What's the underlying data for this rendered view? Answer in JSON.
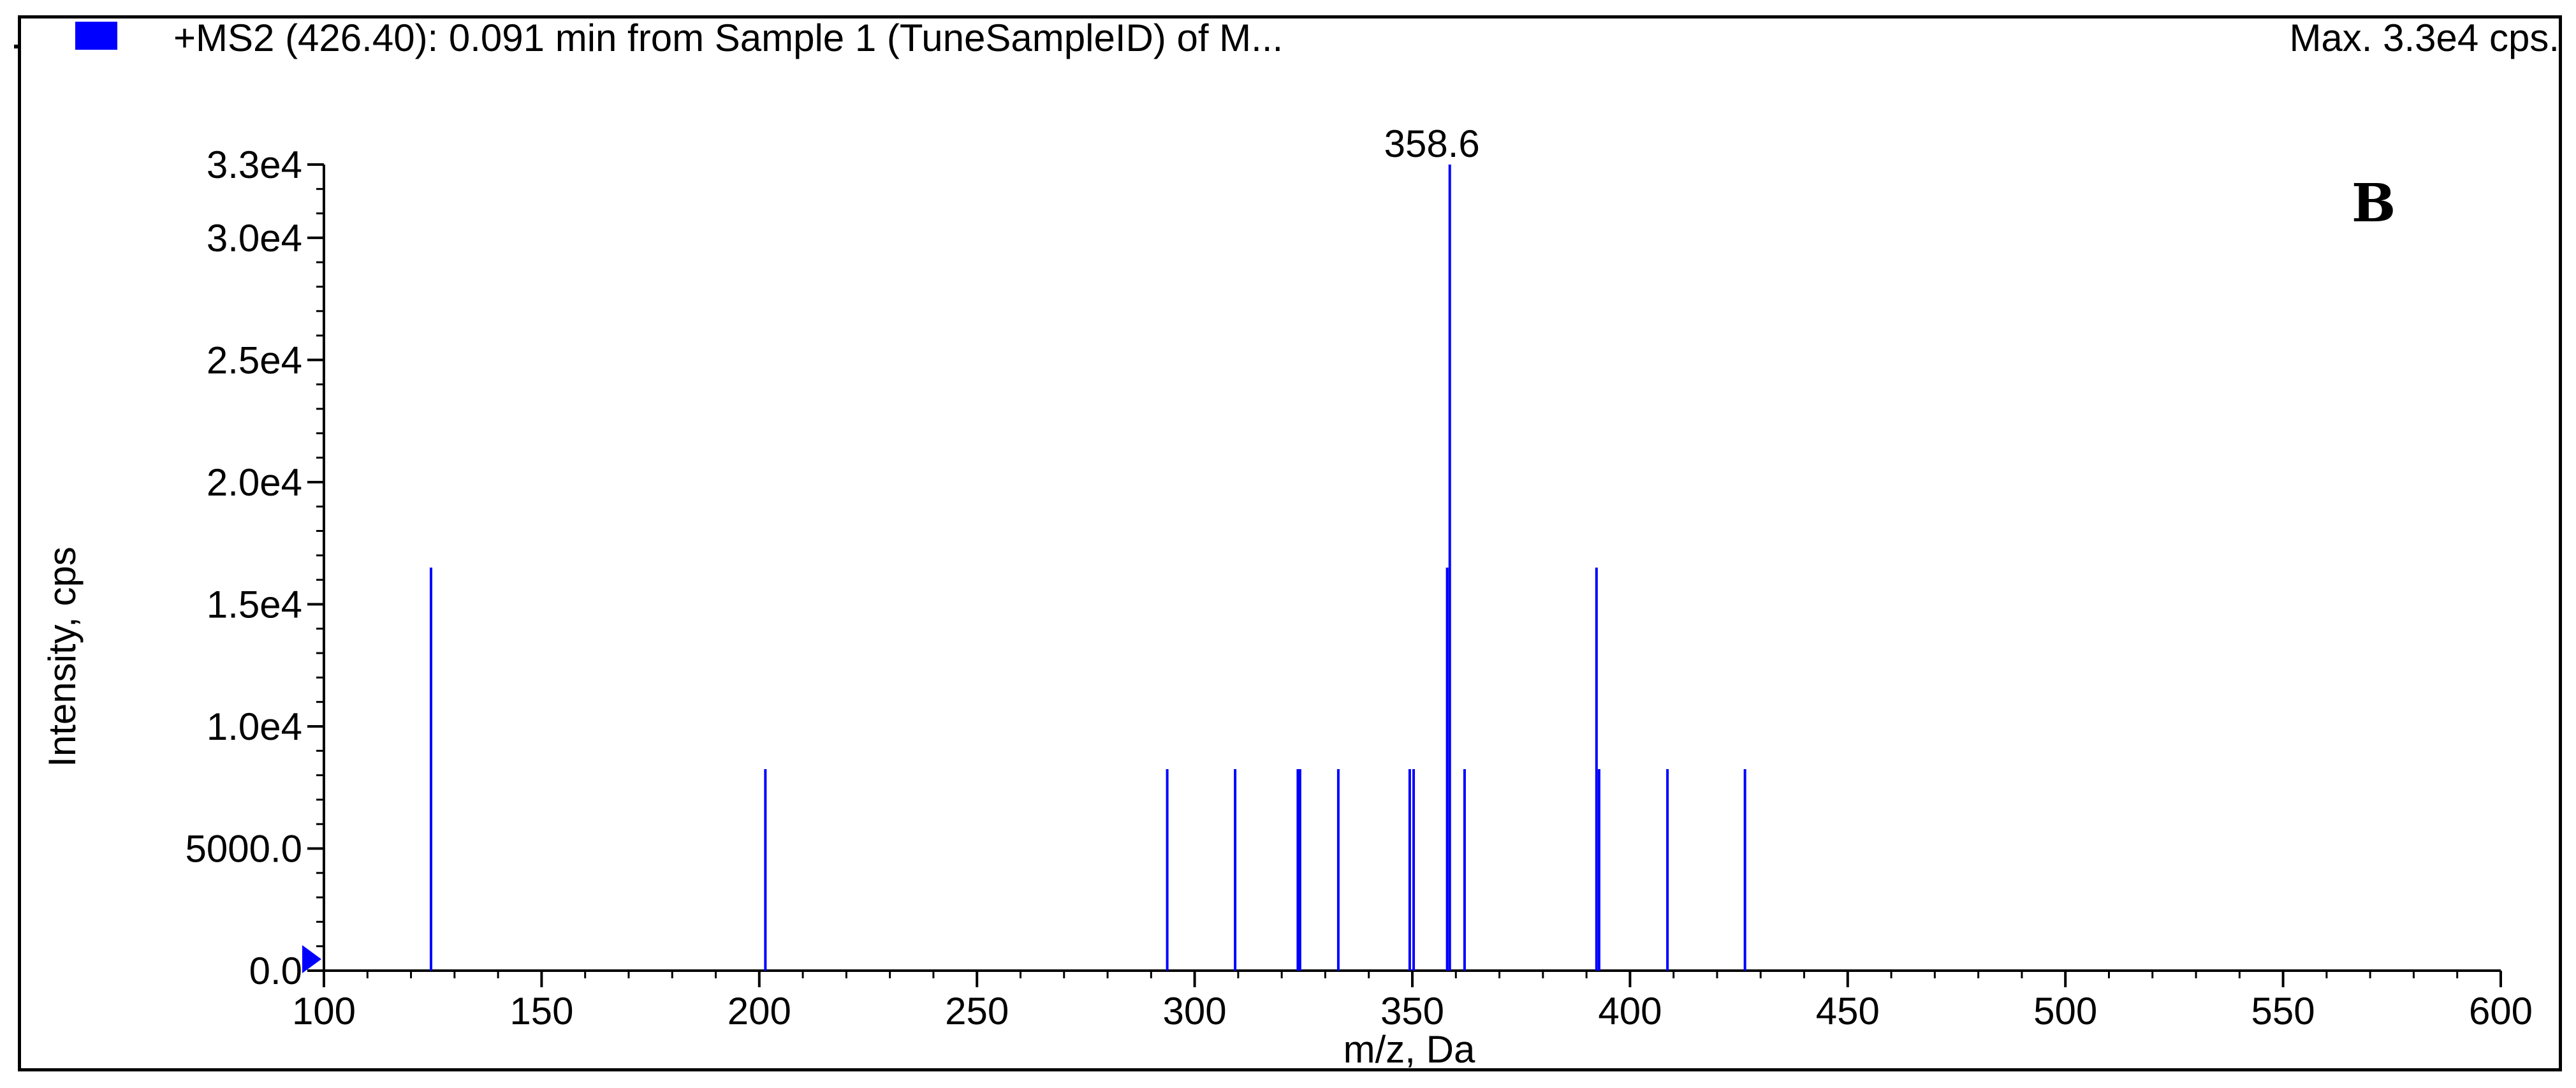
{
  "header": {
    "title": "+MS2 (426.40): 0.091 min from Sample 1 (TuneSampleID) of M...",
    "max_label": "Max. 3.3e4 cps.",
    "panel_letter": "B"
  },
  "colors": {
    "series": "#0000ff",
    "axis": "#000000",
    "background": "#ffffff"
  },
  "chart_data": {
    "type": "bar",
    "title": "+MS2 (426.40): 0.091 min from Sample 1 (TuneSampleID) of M...",
    "xlabel": "m/z, Da",
    "ylabel": "Intensity, cps",
    "xlim": [
      100,
      600
    ],
    "ylim": [
      0,
      33000
    ],
    "grid": false,
    "legend": "top-left",
    "x_ticks": [
      100,
      150,
      200,
      250,
      300,
      350,
      400,
      450,
      500,
      550,
      600
    ],
    "x_tick_labels": [
      "100",
      "150",
      "200",
      "250",
      "300",
      "350",
      "400",
      "450",
      "500",
      "550",
      "600"
    ],
    "y_ticks": [
      0,
      5000,
      10000,
      15000,
      20000,
      25000,
      30000,
      33000
    ],
    "y_tick_labels": [
      "0.0",
      "5000.0",
      "1.0e4",
      "1.5e4",
      "2.0e4",
      "2.5e4",
      "3.0e4",
      "3.3e4"
    ],
    "series": [
      {
        "x": [
          124.6,
          201.4,
          293.7,
          309.3,
          323.7,
          324.2,
          333.0,
          349.4,
          350.3,
          358.0,
          358.6,
          362.0,
          392.3,
          392.9,
          408.6,
          426.4
        ],
        "values": [
          16500,
          8250,
          8250,
          8250,
          8250,
          8250,
          8250,
          8250,
          8250,
          16500,
          33000,
          8250,
          16500,
          8250,
          8250,
          8250
        ]
      }
    ],
    "annotations": [
      {
        "x": 358.6,
        "text": "358.6"
      }
    ]
  }
}
